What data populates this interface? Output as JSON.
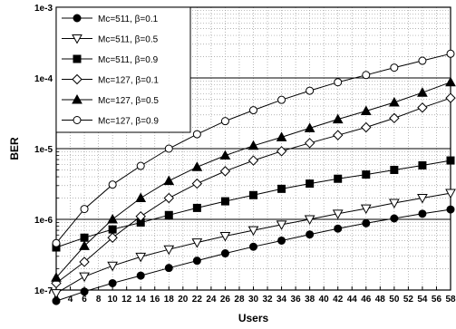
{
  "chart_data": {
    "type": "line",
    "title": "",
    "xlabel": "Users",
    "ylabel": "BER",
    "yscale": "log",
    "ylim": [
      1e-07,
      0.001
    ],
    "xlim": [
      2,
      58
    ],
    "grid": true,
    "legend_position": "top-left",
    "x": [
      2,
      6,
      10,
      14,
      18,
      22,
      26,
      30,
      34,
      38,
      42,
      46,
      50,
      54,
      58
    ],
    "x_tick_labels": [
      "2",
      "4",
      "6",
      "8",
      "10",
      "12",
      "14",
      "16",
      "18",
      "20",
      "22",
      "24",
      "26",
      "28",
      "30",
      "32",
      "34",
      "36",
      "38",
      "40",
      "42",
      "44",
      "46",
      "48",
      "50",
      "52",
      "54",
      "56",
      "58"
    ],
    "y_tick_labels": [
      "1e-7",
      "1e-6",
      "1e-5",
      "1e-4",
      "1e-3"
    ],
    "series": [
      {
        "name": "Mc=511, β=0.1",
        "marker": "filled-circle",
        "values": [
          7e-08,
          9.5e-08,
          1.25e-07,
          1.6e-07,
          2.05e-07,
          2.6e-07,
          3.3e-07,
          4.1e-07,
          5e-07,
          6.1e-07,
          7.4e-07,
          8.8e-07,
          1.03e-06,
          1.2e-06,
          1.38e-06
        ]
      },
      {
        "name": "Mc=511, β=0.5",
        "marker": "open-triangle-down",
        "values": [
          9e-08,
          1.55e-07,
          2.2e-07,
          2.95e-07,
          3.75e-07,
          4.7e-07,
          5.8e-07,
          7e-07,
          8.4e-07,
          1e-06,
          1.2e-06,
          1.42e-06,
          1.7e-06,
          2e-06,
          2.35e-06
        ]
      },
      {
        "name": "Mc=511, β=0.9",
        "marker": "filled-square",
        "values": [
          4e-07,
          5.5e-07,
          7.2e-07,
          9e-07,
          1.15e-06,
          1.45e-06,
          1.8e-06,
          2.2e-06,
          2.7e-06,
          3.2e-06,
          3.75e-06,
          4.3e-06,
          5e-06,
          5.8e-06,
          6.8e-06
        ]
      },
      {
        "name": "Mc=127, β=0.1",
        "marker": "open-diamond",
        "values": [
          1.25e-07,
          2.5e-07,
          5.5e-07,
          1.1e-06,
          2e-06,
          3.2e-06,
          4.8e-06,
          6.8e-06,
          9.2e-06,
          1.2e-05,
          1.55e-05,
          2e-05,
          2.7e-05,
          3.8e-05,
          5.2e-05
        ]
      },
      {
        "name": "Mc=127, β=0.5",
        "marker": "filled-triangle-up",
        "values": [
          1.5e-07,
          4.2e-07,
          1e-06,
          2e-06,
          3.5e-06,
          5.5e-06,
          8e-06,
          1.1e-05,
          1.45e-05,
          1.95e-05,
          2.6e-05,
          3.4e-05,
          4.5e-05,
          6.2e-05,
          8.7e-05
        ]
      },
      {
        "name": "Mc=127, β=0.9",
        "marker": "open-circle",
        "values": [
          4.6e-07,
          1.4e-06,
          3.1e-06,
          5.7e-06,
          1e-05,
          1.6e-05,
          2.45e-05,
          3.5e-05,
          4.9e-05,
          6.6e-05,
          8.7e-05,
          0.00011,
          0.00014,
          0.000175,
          0.00022
        ]
      }
    ]
  }
}
